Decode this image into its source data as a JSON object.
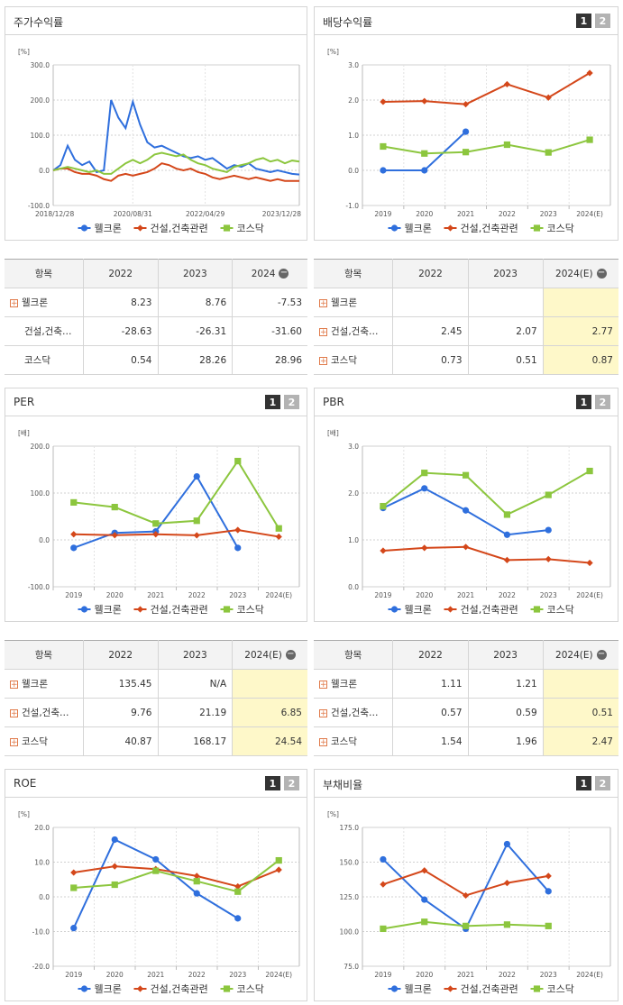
{
  "colors": {
    "blue": "#2f6fdd",
    "orange": "#d4471a",
    "green": "#8cc63e",
    "highlight": "#fef8c9"
  },
  "legend": [
    "웰크론",
    "건설,건축관련",
    "코스닥"
  ],
  "pager": [
    "1",
    "2"
  ],
  "panels": {
    "stock": {
      "title": "주가수익률"
    },
    "dividend": {
      "title": "배당수익률"
    },
    "per": {
      "title": "PER"
    },
    "pbr": {
      "title": "PBR"
    },
    "roe": {
      "title": "ROE"
    },
    "debt": {
      "title": "부채비율"
    }
  },
  "tables": {
    "stock": {
      "headers": [
        "항목",
        "2022",
        "2023",
        "2024"
      ],
      "rows": [
        {
          "name": "웰크론",
          "plus": true,
          "values": [
            "8.23",
            "8.76",
            "-7.53"
          ]
        },
        {
          "name": "건설,건축…",
          "plus": false,
          "values": [
            "-28.63",
            "-26.31",
            "-31.60"
          ]
        },
        {
          "name": "코스닥",
          "plus": false,
          "values": [
            "0.54",
            "28.26",
            "28.96"
          ]
        }
      ]
    },
    "dividend": {
      "headers": [
        "항목",
        "2022",
        "2023",
        "2024(E)"
      ],
      "rows": [
        {
          "name": "웰크론",
          "plus": true,
          "values": [
            "",
            "",
            ""
          ]
        },
        {
          "name": "건설,건축…",
          "plus": true,
          "values": [
            "2.45",
            "2.07",
            "2.77"
          ]
        },
        {
          "name": "코스닥",
          "plus": true,
          "values": [
            "0.73",
            "0.51",
            "0.87"
          ]
        }
      ]
    },
    "per": {
      "headers": [
        "항목",
        "2022",
        "2023",
        "2024(E)"
      ],
      "rows": [
        {
          "name": "웰크론",
          "plus": true,
          "values": [
            "135.45",
            "N/A",
            ""
          ]
        },
        {
          "name": "건설,건축…",
          "plus": true,
          "values": [
            "9.76",
            "21.19",
            "6.85"
          ]
        },
        {
          "name": "코스닥",
          "plus": true,
          "values": [
            "40.87",
            "168.17",
            "24.54"
          ]
        }
      ]
    },
    "pbr": {
      "headers": [
        "항목",
        "2022",
        "2023",
        "2024(E)"
      ],
      "rows": [
        {
          "name": "웰크론",
          "plus": true,
          "values": [
            "1.11",
            "1.21",
            ""
          ]
        },
        {
          "name": "건설,건축…",
          "plus": true,
          "values": [
            "0.57",
            "0.59",
            "0.51"
          ]
        },
        {
          "name": "코스닥",
          "plus": true,
          "values": [
            "1.54",
            "1.96",
            "2.47"
          ]
        }
      ]
    }
  },
  "chart_data": [
    {
      "id": "stock",
      "type": "line",
      "unit": "[%]",
      "ylim": [
        -100,
        300
      ],
      "yticks": [
        "300.0",
        "200.0",
        "100.0",
        "0.0",
        "-100.0"
      ],
      "xticks": [
        "2018/12/28",
        "2020/08/31",
        "2022/04/29",
        "2023/12/28"
      ],
      "x": [
        "2018/12/28",
        "2019/02",
        "2019/04",
        "2019/06",
        "2019/08",
        "2019/10",
        "2019/12",
        "2020/02",
        "2020/03",
        "2020/05",
        "2020/07",
        "2020/08/31",
        "2020/10",
        "2020/12",
        "2021/02",
        "2021/04",
        "2021/06",
        "2021/08",
        "2021/10",
        "2021/12",
        "2022/02",
        "2022/04/29",
        "2022/06",
        "2022/08",
        "2022/10",
        "2022/12",
        "2023/02",
        "2023/04",
        "2023/06",
        "2023/08",
        "2023/10",
        "2023/12/28",
        "2024/02",
        "2024/04",
        "2024/06"
      ],
      "series": [
        {
          "name": "웰크론",
          "color": "#2f6fdd",
          "values": [
            0,
            15,
            70,
            30,
            15,
            25,
            -5,
            0,
            200,
            150,
            120,
            195,
            130,
            80,
            65,
            70,
            60,
            50,
            40,
            35,
            40,
            30,
            35,
            20,
            5,
            15,
            10,
            20,
            5,
            0,
            -5,
            0,
            -5,
            -10,
            -12
          ]
        },
        {
          "name": "건설,건축관련",
          "color": "#d4471a",
          "values": [
            0,
            5,
            5,
            -5,
            -10,
            -10,
            -15,
            -25,
            -30,
            -15,
            -10,
            -15,
            -10,
            -5,
            5,
            20,
            15,
            5,
            0,
            5,
            -5,
            -10,
            -20,
            -25,
            -20,
            -15,
            -20,
            -25,
            -20,
            -25,
            -30,
            -25,
            -30,
            -30,
            -30
          ]
        },
        {
          "name": "코스닥",
          "color": "#8cc63e",
          "values": [
            0,
            5,
            10,
            5,
            0,
            -5,
            0,
            -10,
            -10,
            5,
            20,
            30,
            20,
            30,
            45,
            50,
            45,
            40,
            45,
            30,
            20,
            15,
            5,
            0,
            -5,
            10,
            15,
            20,
            30,
            35,
            25,
            30,
            20,
            28,
            25
          ]
        }
      ]
    },
    {
      "id": "dividend",
      "type": "line",
      "unit": "[%]",
      "ylim": [
        -1,
        3
      ],
      "yticks": [
        "3.0",
        "2.0",
        "1.0",
        "0.0",
        "-1.0"
      ],
      "categories": [
        "2019",
        "2020",
        "2021",
        "2022",
        "2023",
        "2024(E)"
      ],
      "series": [
        {
          "name": "웰크론",
          "color": "#2f6fdd",
          "marker": "circle",
          "values": [
            0.0,
            0.0,
            1.1,
            null,
            null,
            null
          ]
        },
        {
          "name": "건설,건축관련",
          "color": "#d4471a",
          "marker": "diamond",
          "values": [
            1.95,
            1.97,
            1.88,
            2.45,
            2.07,
            2.77
          ]
        },
        {
          "name": "코스닥",
          "color": "#8cc63e",
          "marker": "square",
          "values": [
            0.68,
            0.48,
            0.52,
            0.73,
            0.51,
            0.87
          ]
        }
      ]
    },
    {
      "id": "per",
      "type": "line",
      "unit": "[배]",
      "ylim": [
        -100,
        200
      ],
      "yticks": [
        "200.0",
        "100.0",
        "0.0",
        "-100.0"
      ],
      "categories": [
        "2019",
        "2020",
        "2021",
        "2022",
        "2023",
        "2024(E)"
      ],
      "series": [
        {
          "name": "웰크론",
          "color": "#2f6fdd",
          "marker": "circle",
          "values": [
            -17,
            15,
            18,
            135.45,
            -17,
            null
          ]
        },
        {
          "name": "건설,건축관련",
          "color": "#d4471a",
          "marker": "diamond",
          "values": [
            12,
            10,
            12,
            9.76,
            21.19,
            6.85
          ]
        },
        {
          "name": "코스닥",
          "color": "#8cc63e",
          "marker": "square",
          "values": [
            80,
            70,
            35,
            40.87,
            168.17,
            24.54
          ]
        }
      ]
    },
    {
      "id": "pbr",
      "type": "line",
      "unit": "[배]",
      "ylim": [
        0,
        3
      ],
      "yticks": [
        "3.0",
        "2.0",
        "1.0",
        "0.0"
      ],
      "categories": [
        "2019",
        "2020",
        "2021",
        "2022",
        "2023",
        "2024(E)"
      ],
      "series": [
        {
          "name": "웰크론",
          "color": "#2f6fdd",
          "marker": "circle",
          "values": [
            1.68,
            2.1,
            1.63,
            1.11,
            1.21,
            null
          ]
        },
        {
          "name": "건설,건축관련",
          "color": "#d4471a",
          "marker": "diamond",
          "values": [
            0.77,
            0.83,
            0.85,
            0.57,
            0.59,
            0.51
          ]
        },
        {
          "name": "코스닥",
          "color": "#8cc63e",
          "marker": "square",
          "values": [
            1.72,
            2.43,
            2.38,
            1.54,
            1.96,
            2.47
          ]
        }
      ]
    },
    {
      "id": "roe",
      "type": "line",
      "unit": "[%]",
      "ylim": [
        -20,
        20
      ],
      "yticks": [
        "20.0",
        "10.0",
        "0.0",
        "-10.0",
        "-20.0"
      ],
      "categories": [
        "2019",
        "2020",
        "2021",
        "2022",
        "2023",
        "2024(E)"
      ],
      "series": [
        {
          "name": "웰크론",
          "color": "#2f6fdd",
          "marker": "circle",
          "values": [
            -9,
            16.5,
            10.8,
            1.0,
            -6.2,
            null
          ]
        },
        {
          "name": "건설,건축관련",
          "color": "#d4471a",
          "marker": "diamond",
          "values": [
            7.0,
            8.8,
            8.0,
            6.0,
            3.0,
            7.8
          ]
        },
        {
          "name": "코스닥",
          "color": "#8cc63e",
          "marker": "square",
          "values": [
            2.6,
            3.5,
            7.5,
            4.5,
            1.5,
            10.5
          ]
        }
      ]
    },
    {
      "id": "debt",
      "type": "line",
      "unit": "[%]",
      "ylim": [
        75,
        175
      ],
      "yticks": [
        "175.0",
        "150.0",
        "125.0",
        "100.0",
        "75.0"
      ],
      "categories": [
        "2019",
        "2020",
        "2021",
        "2022",
        "2023",
        "2024(E)"
      ],
      "series": [
        {
          "name": "웰크론",
          "color": "#2f6fdd",
          "marker": "circle",
          "values": [
            152,
            123,
            102,
            163,
            129,
            null
          ]
        },
        {
          "name": "건설,건축관련",
          "color": "#d4471a",
          "marker": "diamond",
          "values": [
            134,
            144,
            126,
            135,
            140,
            null
          ]
        },
        {
          "name": "코스닥",
          "color": "#8cc63e",
          "marker": "square",
          "values": [
            102,
            107,
            104,
            105,
            104,
            null
          ]
        }
      ]
    }
  ]
}
